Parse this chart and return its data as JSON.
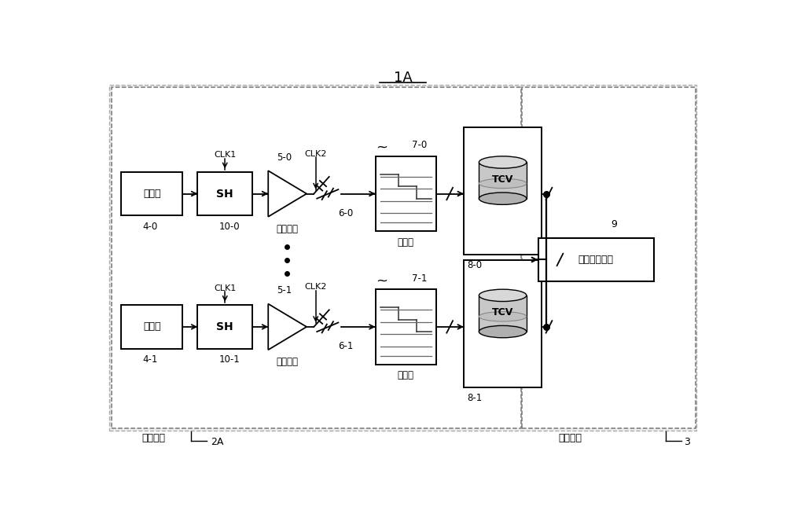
{
  "title": "1A",
  "bg_color": "#ffffff",
  "analog_chip_label": "模拟芯片",
  "analog_chip_label2": "2A",
  "digital_chip_label": "数字芯片",
  "digital_chip_label2": "3",
  "signal_proc_label": "信号处理电路",
  "signal_proc_num": "9",
  "row0": {
    "sensor_label": "传感器",
    "sensor_num": "4-0",
    "sh_label": "SH",
    "sh_num": "10-0",
    "clk1_label": "CLK1",
    "amp_num": "5-0",
    "clk2_label": "CLK2",
    "mux_num": "6-0",
    "analog_label": "模拟信号",
    "quant_label": "量化器",
    "quant_num": "7-0",
    "tcv_label": "TCV",
    "mem_num": "8-0"
  },
  "row1": {
    "sensor_label": "传感器",
    "sensor_num": "4-1",
    "sh_label": "SH",
    "sh_num": "10-1",
    "clk1_label": "CLK1",
    "amp_num": "5-1",
    "clk2_label": "CLK2",
    "mux_num": "6-1",
    "analog_label": "模拟信号",
    "quant_label": "量化器",
    "quant_num": "7-1",
    "tcv_label": "TCV",
    "mem_num": "8-1"
  }
}
